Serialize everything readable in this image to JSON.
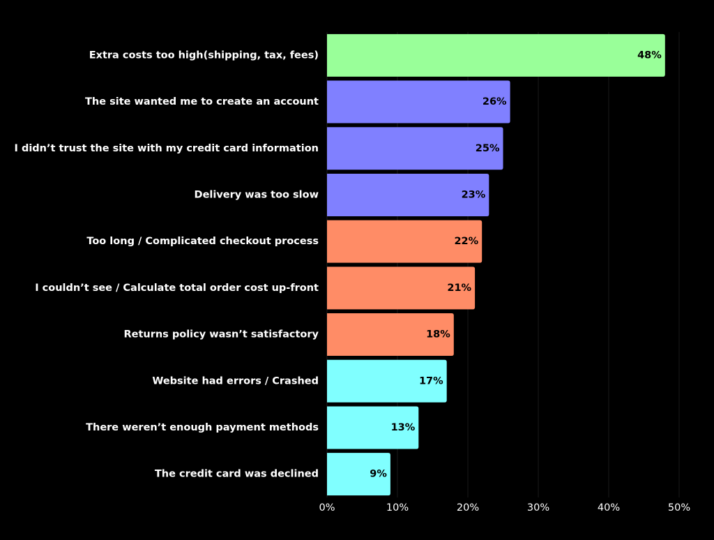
{
  "chart_data": {
    "type": "barh",
    "categories": [
      "Extra costs too high(shipping, tax, fees)",
      "The site wanted me to create an account",
      "I didn’t trust the site with my credit card information",
      "Delivery was too slow",
      "Too long / Complicated checkout process",
      "I couldn’t see / Calculate total order cost up-front",
      "Returns policy wasn’t satisfactory",
      "Website had errors / Crashed",
      "There weren’t enough payment methods",
      "The credit card was declined"
    ],
    "values": [
      48,
      26,
      25,
      23,
      22,
      21,
      18,
      17,
      13,
      9
    ],
    "value_labels": [
      "48%",
      "26%",
      "25%",
      "23%",
      "22%",
      "21%",
      "18%",
      "17%",
      "13%",
      "9%"
    ],
    "colors": [
      "#99ff99",
      "#8080ff",
      "#8080ff",
      "#8080ff",
      "#ff8c66",
      "#ff8c66",
      "#ff8c66",
      "#80ffff",
      "#80ffff",
      "#80ffff"
    ],
    "xlim": [
      0,
      50
    ],
    "xticks": [
      {
        "value": 0,
        "label": "0%"
      },
      {
        "value": 10,
        "label": "10%"
      },
      {
        "value": 20,
        "label": "20%"
      },
      {
        "value": 30,
        "label": "30%"
      },
      {
        "value": 40,
        "label": "40%"
      },
      {
        "value": 50,
        "label": "50%"
      }
    ],
    "grid": true
  }
}
